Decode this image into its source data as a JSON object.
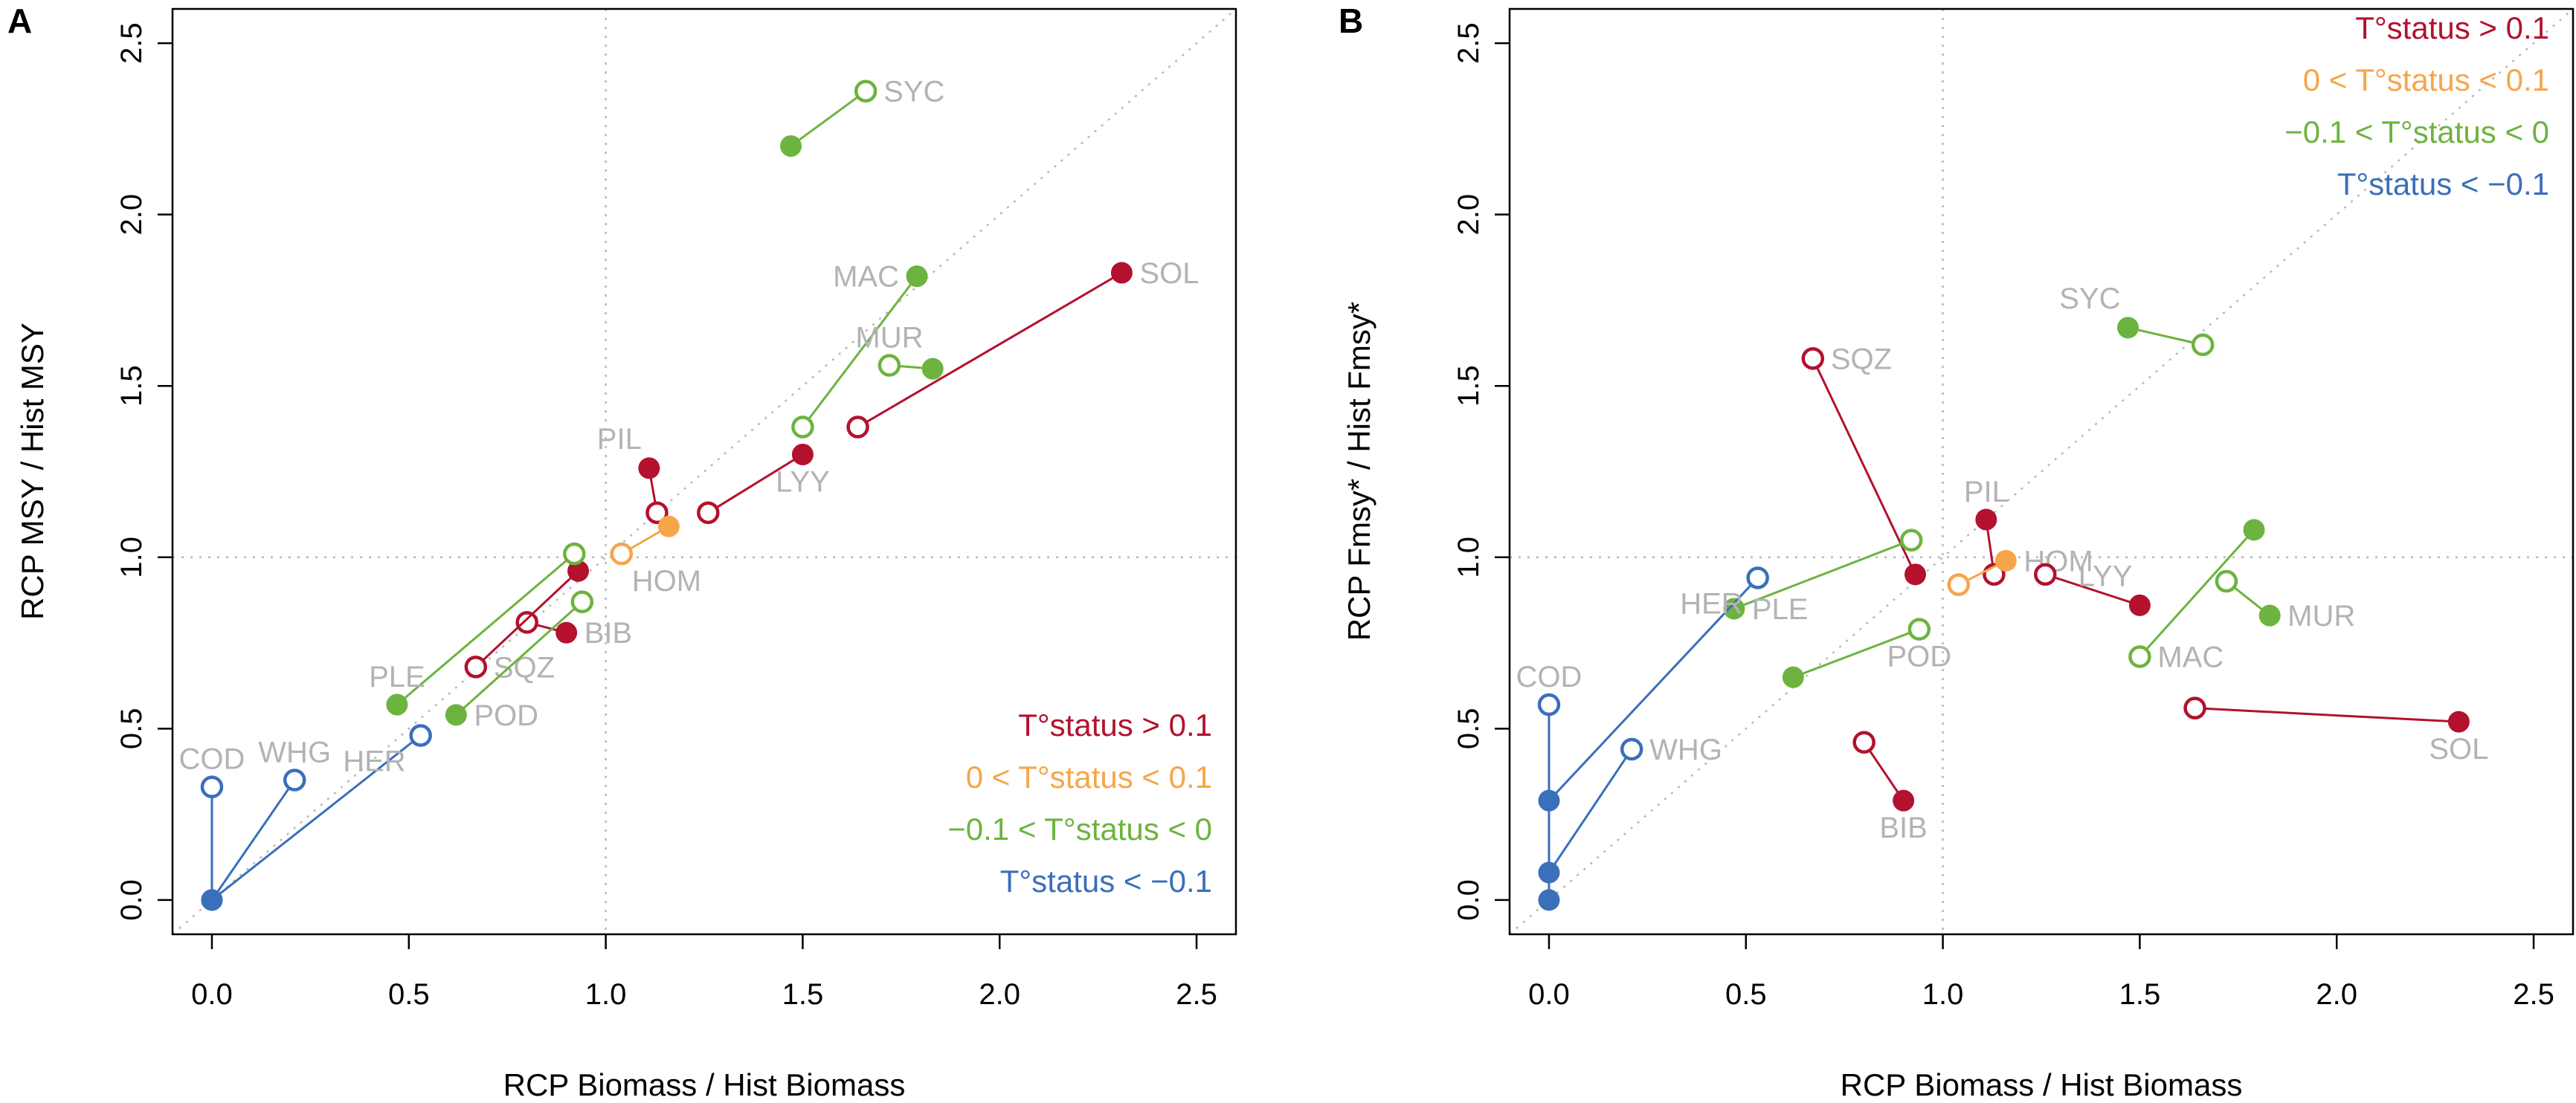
{
  "colors": {
    "red": "#b3112e",
    "orange": "#f7a54a",
    "green": "#6db33f",
    "blue": "#3a6fba",
    "label": "#b3b3b3"
  },
  "chart_data": [
    {
      "type": "scatter",
      "panel": "A",
      "xlabel": "RCP Biomass / Hist Biomass",
      "ylabel": "RCP MSY / Hist MSY",
      "xlim": [
        -0.1,
        2.6
      ],
      "ylim": [
        -0.1,
        2.6
      ],
      "xticks": [
        "0.0",
        "0.5",
        "1.0",
        "1.5",
        "2.0",
        "2.5"
      ],
      "yticks": [
        "0.0",
        "0.5",
        "1.0",
        "1.5",
        "2.0",
        "2.5"
      ],
      "reference_lines": [
        "x = 1",
        "y = 1",
        "y = x"
      ],
      "legend": {
        "position": "bottom-right",
        "entries": [
          {
            "text": "T°status > 0.1",
            "color": "red"
          },
          {
            "text": "0 < T°status < 0.1",
            "color": "orange"
          },
          {
            "text": "−0.1 < T°status < 0",
            "color": "green"
          },
          {
            "text": "T°status < −0.1",
            "color": "blue"
          }
        ]
      },
      "series": [
        {
          "name": "SYC",
          "color": "green",
          "open": [
            1.66,
            2.36
          ],
          "filled": [
            1.47,
            2.2
          ],
          "label_anchor": "open",
          "label_pos": "right"
        },
        {
          "name": "MAC",
          "color": "green",
          "open": [
            1.5,
            1.38
          ],
          "filled": [
            1.79,
            1.82
          ],
          "label_anchor": "filled",
          "label_pos": "left"
        },
        {
          "name": "MUR",
          "color": "green",
          "open": [
            1.72,
            1.56
          ],
          "filled": [
            1.83,
            1.55
          ],
          "label_anchor": "open",
          "label_pos": "above"
        },
        {
          "name": "SOL",
          "color": "red",
          "open": [
            1.64,
            1.38
          ],
          "filled": [
            2.31,
            1.83
          ],
          "label_anchor": "filled",
          "label_pos": "right"
        },
        {
          "name": "LYY",
          "color": "red",
          "open": [
            1.26,
            1.13
          ],
          "filled": [
            1.5,
            1.3
          ],
          "label_anchor": "filled",
          "label_pos": "below"
        },
        {
          "name": "PIL",
          "color": "red",
          "open": [
            1.13,
            1.13
          ],
          "filled": [
            1.11,
            1.26
          ],
          "label_anchor": "filled",
          "label_pos": "above-left"
        },
        {
          "name": "HOM",
          "color": "orange",
          "open": [
            1.04,
            1.01
          ],
          "filled": [
            1.16,
            1.09
          ],
          "label_anchor": "open",
          "label_pos": "below-right"
        },
        {
          "name": "BIB",
          "color": "red",
          "open": [
            0.8,
            0.81
          ],
          "filled": [
            0.9,
            0.78
          ],
          "label_anchor": "filled",
          "label_pos": "right"
        },
        {
          "name": "SQZ",
          "color": "red",
          "open": [
            0.67,
            0.68
          ],
          "filled": [
            0.93,
            0.96
          ],
          "label_anchor": "open",
          "label_pos": "right"
        },
        {
          "name": "PLE",
          "color": "green",
          "open": [
            0.92,
            1.01
          ],
          "filled": [
            0.47,
            0.57
          ],
          "label_anchor": "filled",
          "label_pos": "above"
        },
        {
          "name": "POD",
          "color": "green",
          "open": [
            0.94,
            0.87
          ],
          "filled": [
            0.62,
            0.54
          ],
          "label_anchor": "filled",
          "label_pos": "right"
        },
        {
          "name": "HER",
          "color": "blue",
          "open": [
            0.53,
            0.48
          ],
          "filled": [
            0.0,
            0.0
          ],
          "label_anchor": "open",
          "label_pos": "below-left"
        },
        {
          "name": "WHG",
          "color": "blue",
          "open": [
            0.21,
            0.35
          ],
          "filled": [
            0.0,
            0.0
          ],
          "label_anchor": "open",
          "label_pos": "above"
        },
        {
          "name": "COD",
          "color": "blue",
          "open": [
            0.0,
            0.33
          ],
          "filled": [
            0.0,
            0.0
          ],
          "label_anchor": "open",
          "label_pos": "above"
        }
      ]
    },
    {
      "type": "scatter",
      "panel": "B",
      "xlabel": "RCP Biomass / Hist Biomass",
      "ylabel": "RCP Fmsy* / Hist Fmsy*",
      "xlim": [
        -0.1,
        2.6
      ],
      "ylim": [
        -0.1,
        2.6
      ],
      "xticks": [
        "0.0",
        "0.5",
        "1.0",
        "1.5",
        "2.0",
        "2.5"
      ],
      "yticks": [
        "0.0",
        "0.5",
        "1.0",
        "1.5",
        "2.0",
        "2.5"
      ],
      "reference_lines": [
        "x = 1",
        "y = 1",
        "y = x"
      ],
      "legend": {
        "position": "top-right",
        "entries": [
          {
            "text": "T°status > 0.1",
            "color": "red"
          },
          {
            "text": "0 < T°status < 0.1",
            "color": "orange"
          },
          {
            "text": "−0.1 < T°status < 0",
            "color": "green"
          },
          {
            "text": "T°status < −0.1",
            "color": "blue"
          }
        ]
      },
      "series": [
        {
          "name": "SYC",
          "color": "green",
          "open": [
            1.66,
            1.62
          ],
          "filled": [
            1.47,
            1.67
          ],
          "label_anchor": "filled",
          "label_pos": "above-left"
        },
        {
          "name": "SQZ",
          "color": "red",
          "open": [
            0.67,
            1.58
          ],
          "filled": [
            0.93,
            0.95
          ],
          "label_anchor": "open",
          "label_pos": "right"
        },
        {
          "name": "PIL",
          "color": "red",
          "open": [
            1.13,
            0.95
          ],
          "filled": [
            1.11,
            1.11
          ],
          "label_anchor": "filled",
          "label_pos": "above"
        },
        {
          "name": "HOM",
          "color": "orange",
          "open": [
            1.04,
            0.92
          ],
          "filled": [
            1.16,
            0.99
          ],
          "label_anchor": "filled",
          "label_pos": "right"
        },
        {
          "name": "LYY",
          "color": "red",
          "open": [
            1.26,
            0.95
          ],
          "filled": [
            1.5,
            0.86
          ],
          "label_anchor": "filled",
          "label_pos": "above-left"
        },
        {
          "name": "MAC",
          "color": "green",
          "open": [
            1.5,
            0.71
          ],
          "filled": [
            1.79,
            1.08
          ],
          "label_anchor": "open",
          "label_pos": "right"
        },
        {
          "name": "MUR",
          "color": "green",
          "open": [
            1.72,
            0.93
          ],
          "filled": [
            1.83,
            0.83
          ],
          "label_anchor": "filled",
          "label_pos": "right"
        },
        {
          "name": "SOL",
          "color": "red",
          "open": [
            1.64,
            0.56
          ],
          "filled": [
            2.31,
            0.52
          ],
          "label_anchor": "filled",
          "label_pos": "below"
        },
        {
          "name": "BIB",
          "color": "red",
          "open": [
            0.8,
            0.46
          ],
          "filled": [
            0.9,
            0.29
          ],
          "label_anchor": "filled",
          "label_pos": "below"
        },
        {
          "name": "PLE",
          "color": "green",
          "open": [
            0.92,
            1.05
          ],
          "filled": [
            0.47,
            0.85
          ],
          "label_anchor": "filled",
          "label_pos": "right"
        },
        {
          "name": "POD",
          "color": "green",
          "open": [
            0.94,
            0.79
          ],
          "filled": [
            0.62,
            0.65
          ],
          "label_anchor": "open",
          "label_pos": "below"
        },
        {
          "name": "HER",
          "color": "blue",
          "open": [
            0.53,
            0.94
          ],
          "filled": [
            0.0,
            0.29
          ],
          "label_anchor": "open",
          "label_pos": "below-left"
        },
        {
          "name": "WHG",
          "color": "blue",
          "open": [
            0.21,
            0.44
          ],
          "filled": [
            0.0,
            0.08
          ],
          "label_anchor": "open",
          "label_pos": "right"
        },
        {
          "name": "COD",
          "color": "blue",
          "open": [
            0.0,
            0.57
          ],
          "filled": [
            0.0,
            0.0
          ],
          "label_anchor": "open",
          "label_pos": "above"
        }
      ]
    }
  ]
}
